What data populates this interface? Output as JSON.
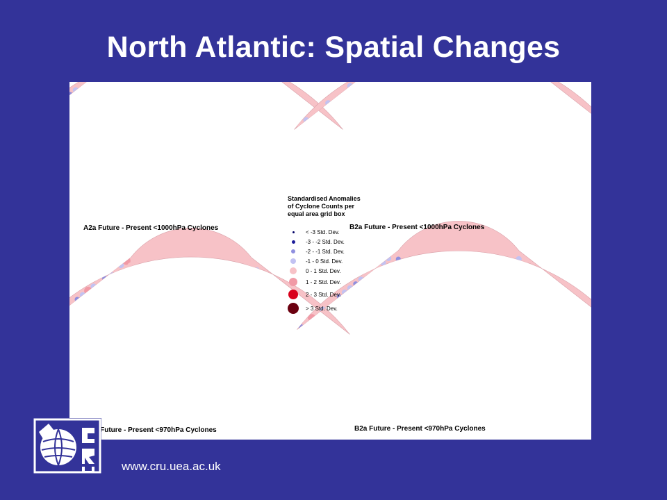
{
  "slide": {
    "title": "North Atlantic: Spatial Changes",
    "footer_url": "www.cru.uea.ac.uk",
    "background_color": "#333399"
  },
  "figure": {
    "panels": [
      {
        "caption": "A2a Future - Present <1000hPa Cyclones"
      },
      {
        "caption": "B2a Future - Present <1000hPa Cyclones"
      },
      {
        "caption": "A2a Future - Present <970hPa Cyclones"
      },
      {
        "caption": "B2a Future - Present <970hPa Cyclones"
      }
    ],
    "legend": {
      "title_lines": [
        "Standardised Anomalies",
        "of Cyclone Counts per",
        "equal area grid box"
      ],
      "entries": [
        {
          "label": "< -3 Std. Dev.",
          "color": "#000066"
        },
        {
          "label": "-3 - -2 Std. Dev.",
          "color": "#1a1a99"
        },
        {
          "label": "-2 - -1 Std. Dev.",
          "color": "#8f8fdf"
        },
        {
          "label": "-1 - 0 Std. Dev.",
          "color": "#c2c2f2"
        },
        {
          "label": "0 - 1 Std. Dev.",
          "color": "#f7c2c7"
        },
        {
          "label": "1 - 2 Std. Dev.",
          "color": "#f19aa6"
        },
        {
          "label": "2 - 3 Std. Dev.",
          "color": "#d9001b"
        },
        {
          "label": "> 3 Std. Dev.",
          "color": "#6b0010"
        }
      ]
    },
    "map_fill_color": "#f7c2c7"
  },
  "logo": {
    "name": "CRU logo"
  }
}
